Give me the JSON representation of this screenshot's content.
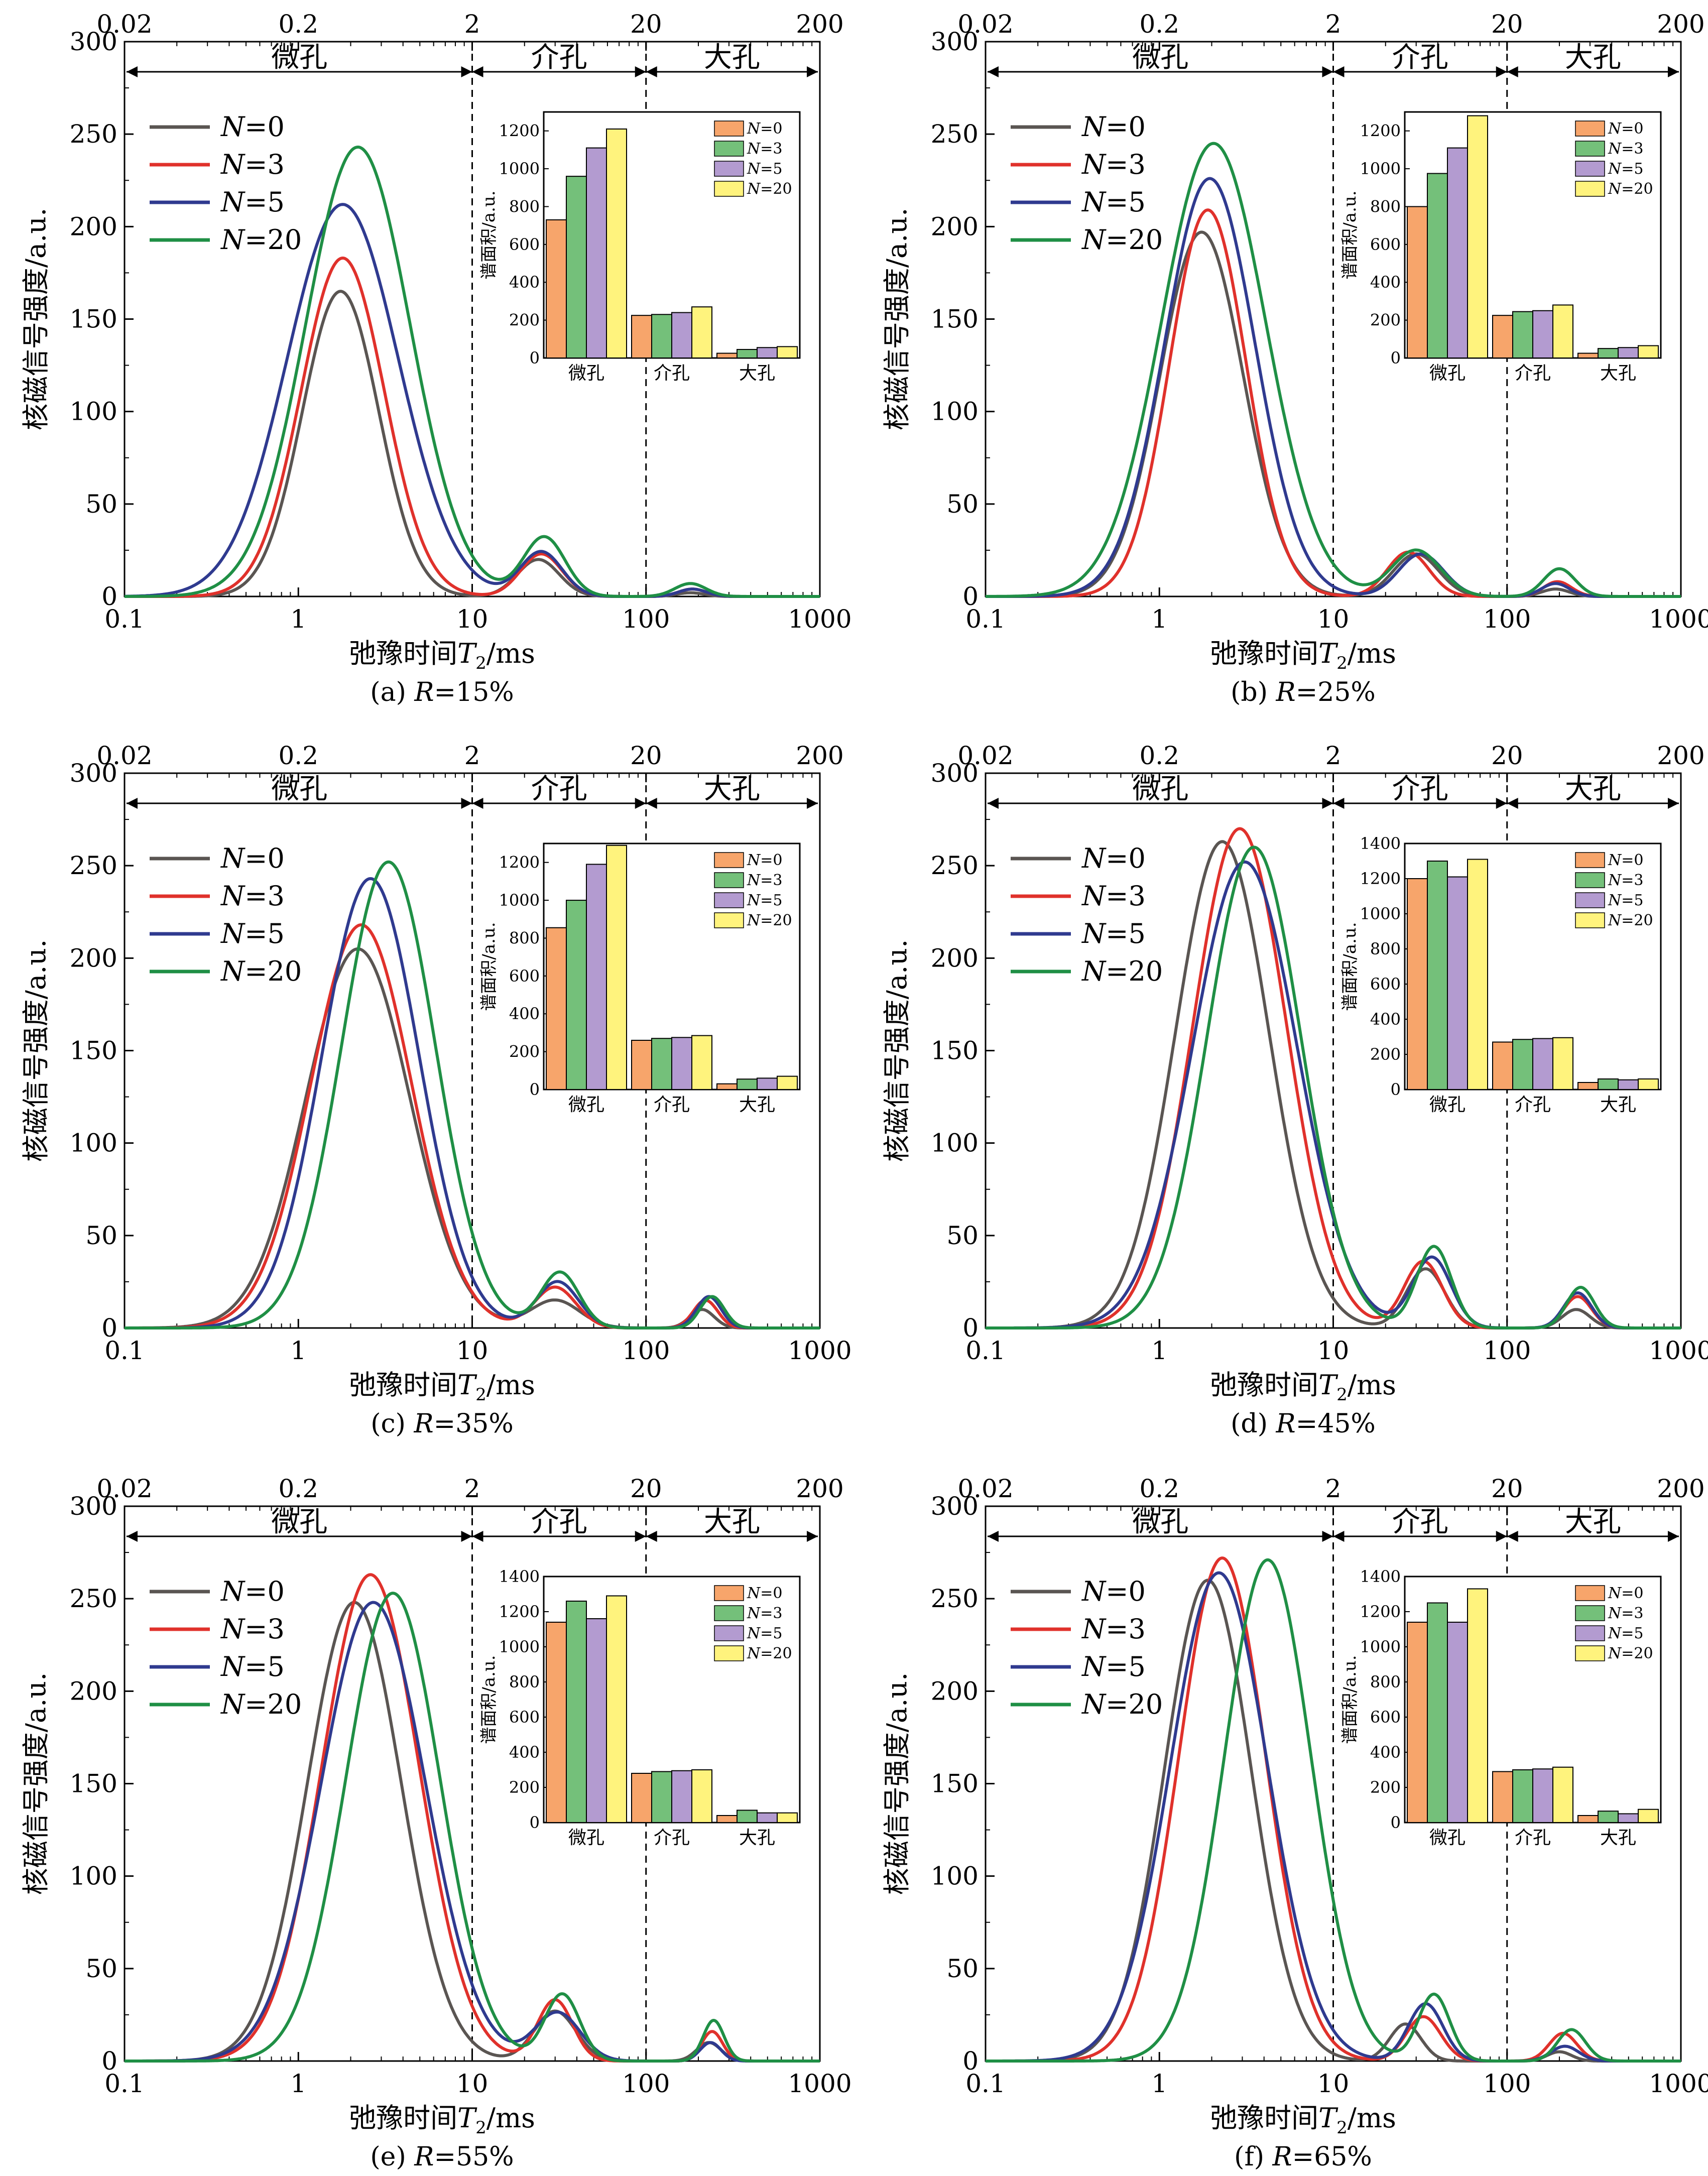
{
  "colors": {
    "N0": "#5a5552",
    "N3": "#e0312b",
    "N5": "#2f3a8f",
    "N20": "#1f8f45",
    "bar_N0": "#f7a56b",
    "bar_N3": "#74c07a",
    "bar_N5": "#b39bd0",
    "bar_N20": "#fff37d"
  },
  "chart_data": [
    {
      "caption_prefix": "(a) ",
      "caption_var": "R",
      "caption_value": "=15%",
      "type": "line",
      "x_scale": "log",
      "xlim": [
        0.1,
        1000
      ],
      "ylim": [
        0,
        300
      ],
      "x_ticks": [
        "0.1",
        "1",
        "10",
        "100",
        "1000"
      ],
      "top_ticks": [
        "0.02",
        "0.2",
        "2",
        "20",
        "200"
      ],
      "y_ticks": [
        "0",
        "50",
        "100",
        "150",
        "200",
        "250",
        "300"
      ],
      "xlabel": "弛豫时间",
      "xlabel_var": "T",
      "xlabel_sub": "2",
      "xlabel_unit": "/ms",
      "ylabel": "核磁信号强度/a.u.",
      "regions": [
        "微孔",
        "介孔",
        "大孔"
      ],
      "region_bounds": [
        10,
        100
      ],
      "legend_var": "N",
      "series": [
        {
          "name": "=0",
          "color_key": "N0",
          "peaks": [
            [
              1.75,
              165,
              0.22
            ],
            [
              24,
              20,
              0.12
            ],
            [
              180,
              2,
              0.08
            ]
          ]
        },
        {
          "name": "=3",
          "color_key": "N3",
          "peaks": [
            [
              1.8,
              183,
              0.24
            ],
            [
              25,
              23,
              0.12
            ],
            [
              185,
              4,
              0.08
            ]
          ]
        },
        {
          "name": "=5",
          "color_key": "N5",
          "peaks": [
            [
              1.8,
              212,
              0.32
            ],
            [
              25,
              24,
              0.12
            ],
            [
              185,
              4,
              0.08
            ]
          ]
        },
        {
          "name": "=20",
          "color_key": "N20",
          "peaks": [
            [
              2.2,
              243,
              0.3
            ],
            [
              26,
              32,
              0.12
            ],
            [
              180,
              7,
              0.09
            ]
          ]
        }
      ],
      "inset": {
        "type": "bar",
        "ylabel": "谱面积/a.u.",
        "categories": [
          "微孔",
          "介孔",
          "大孔"
        ],
        "ymax": 1300,
        "ticks": [
          "0",
          "200",
          "400",
          "600",
          "800",
          "1000",
          "1200"
        ],
        "values": [
          [
            730,
            960,
            1110,
            1210
          ],
          [
            225,
            230,
            240,
            270
          ],
          [
            25,
            45,
            55,
            60
          ]
        ]
      }
    },
    {
      "caption_prefix": "(b) ",
      "caption_var": "R",
      "caption_value": "=25%",
      "type": "line",
      "x_scale": "log",
      "xlim": [
        0.1,
        1000
      ],
      "ylim": [
        0,
        300
      ],
      "x_ticks": [
        "0.1",
        "1",
        "10",
        "100",
        "1000"
      ],
      "top_ticks": [
        "0.02",
        "0.2",
        "2",
        "20",
        "200"
      ],
      "y_ticks": [
        "0",
        "50",
        "100",
        "150",
        "200",
        "250",
        "300"
      ],
      "xlabel": "弛豫时间",
      "xlabel_var": "T",
      "xlabel_sub": "2",
      "xlabel_unit": "/ms",
      "ylabel": "核磁信号强度/a.u.",
      "regions": [
        "微孔",
        "介孔",
        "大孔"
      ],
      "region_bounds": [
        10,
        100
      ],
      "legend_var": "N",
      "series": [
        {
          "name": "=0",
          "color_key": "N0",
          "peaks": [
            [
              1.75,
              197,
              0.24
            ],
            [
              30,
              23,
              0.13
            ],
            [
              190,
              4,
              0.08
            ]
          ]
        },
        {
          "name": "=3",
          "color_key": "N3",
          "peaks": [
            [
              1.9,
              209,
              0.22
            ],
            [
              27,
              24,
              0.12
            ],
            [
              195,
              8,
              0.08
            ]
          ]
        },
        {
          "name": "=5",
          "color_key": "N5",
          "peaks": [
            [
              1.95,
              226,
              0.26
            ],
            [
              32,
              23,
              0.13
            ],
            [
              190,
              7,
              0.08
            ]
          ]
        },
        {
          "name": "=20",
          "color_key": "N20",
          "peaks": [
            [
              2.05,
              245,
              0.3
            ],
            [
              30,
              25,
              0.14
            ],
            [
              200,
              15,
              0.09
            ]
          ]
        }
      ],
      "inset": {
        "type": "bar",
        "ylabel": "谱面积/a.u.",
        "categories": [
          "微孔",
          "介孔",
          "大孔"
        ],
        "ymax": 1300,
        "ticks": [
          "0",
          "200",
          "400",
          "600",
          "800",
          "1000",
          "1200"
        ],
        "values": [
          [
            800,
            975,
            1110,
            1280
          ],
          [
            225,
            245,
            250,
            280
          ],
          [
            25,
            50,
            55,
            65
          ]
        ]
      }
    },
    {
      "caption_prefix": "(c) ",
      "caption_var": "R",
      "caption_value": "=35%",
      "type": "line",
      "x_scale": "log",
      "xlim": [
        0.1,
        1000
      ],
      "ylim": [
        0,
        300
      ],
      "x_ticks": [
        "0.1",
        "1",
        "10",
        "100",
        "1000"
      ],
      "top_ticks": [
        "0.02",
        "0.2",
        "2",
        "20",
        "200"
      ],
      "y_ticks": [
        "0",
        "50",
        "100",
        "150",
        "200",
        "250",
        "300"
      ],
      "xlabel": "弛豫时间",
      "xlabel_var": "T",
      "xlabel_sub": "2",
      "xlabel_unit": "/ms",
      "ylabel": "核磁信号强度/a.u.",
      "regions": [
        "微孔",
        "介孔",
        "大孔"
      ],
      "region_bounds": [
        10,
        100
      ],
      "legend_var": "N",
      "series": [
        {
          "name": "=0",
          "color_key": "N0",
          "peaks": [
            [
              2.2,
              205,
              0.3
            ],
            [
              30,
              15,
              0.14
            ],
            [
              210,
              10,
              0.07
            ]
          ]
        },
        {
          "name": "=3",
          "color_key": "N3",
          "peaks": [
            [
              2.3,
              218,
              0.29
            ],
            [
              30,
              22,
              0.12
            ],
            [
              220,
              15,
              0.07
            ]
          ]
        },
        {
          "name": "=5",
          "color_key": "N5",
          "peaks": [
            [
              2.6,
              243,
              0.28
            ],
            [
              31,
              25,
              0.12
            ],
            [
              230,
              17,
              0.07
            ]
          ]
        },
        {
          "name": "=20",
          "color_key": "N20",
          "peaks": [
            [
              3.3,
              252,
              0.27
            ],
            [
              32,
              30,
              0.11
            ],
            [
              240,
              17,
              0.07
            ]
          ]
        }
      ],
      "inset": {
        "type": "bar",
        "ylabel": "谱面积/a.u.",
        "categories": [
          "微孔",
          "介孔",
          "大孔"
        ],
        "ymax": 1300,
        "ticks": [
          "0",
          "200",
          "400",
          "600",
          "800",
          "1000",
          "1200"
        ],
        "values": [
          [
            855,
            1000,
            1190,
            1290
          ],
          [
            260,
            270,
            275,
            285
          ],
          [
            30,
            55,
            60,
            70
          ]
        ]
      }
    },
    {
      "caption_prefix": "(d) ",
      "caption_var": "R",
      "caption_value": "=45%",
      "type": "line",
      "x_scale": "log",
      "xlim": [
        0.1,
        1000
      ],
      "ylim": [
        0,
        300
      ],
      "x_ticks": [
        "0.1",
        "1",
        "10",
        "100",
        "1000"
      ],
      "top_ticks": [
        "0.02",
        "0.2",
        "2",
        "20",
        "200"
      ],
      "y_ticks": [
        "0",
        "50",
        "100",
        "150",
        "200",
        "250",
        "300"
      ],
      "xlabel": "弛豫时间",
      "xlabel_var": "T",
      "xlabel_sub": "2",
      "xlabel_unit": "/ms",
      "ylabel": "核磁信号强度/a.u.",
      "regions": [
        "微孔",
        "介孔",
        "大孔"
      ],
      "region_bounds": [
        10,
        100
      ],
      "legend_var": "N",
      "series": [
        {
          "name": "=0",
          "color_key": "N0",
          "peaks": [
            [
              2.3,
              263,
              0.27
            ],
            [
              34,
              32,
              0.11
            ],
            [
              250,
              10,
              0.08
            ]
          ]
        },
        {
          "name": "=3",
          "color_key": "N3",
          "peaks": [
            [
              2.9,
              270,
              0.27
            ],
            [
              33,
              36,
              0.11
            ],
            [
              255,
              17,
              0.08
            ]
          ]
        },
        {
          "name": "=5",
          "color_key": "N5",
          "peaks": [
            [
              3.1,
              252,
              0.3
            ],
            [
              37,
              38,
              0.11
            ],
            [
              255,
              19,
              0.08
            ]
          ]
        },
        {
          "name": "=20",
          "color_key": "N20",
          "peaks": [
            [
              3.5,
              260,
              0.27
            ],
            [
              38,
              44,
              0.1
            ],
            [
              265,
              22,
              0.08
            ]
          ]
        }
      ],
      "inset": {
        "type": "bar",
        "ylabel": "谱面积/a.u.",
        "categories": [
          "微孔",
          "介孔",
          "大孔"
        ],
        "ymax": 1400,
        "ticks": [
          "0",
          "200",
          "400",
          "600",
          "800",
          "1000",
          "1200",
          "1400"
        ],
        "values": [
          [
            1200,
            1300,
            1210,
            1310
          ],
          [
            270,
            285,
            290,
            295
          ],
          [
            40,
            60,
            55,
            60
          ]
        ]
      }
    },
    {
      "caption_prefix": "(e) ",
      "caption_var": "R",
      "caption_value": "=55%",
      "type": "line",
      "x_scale": "log",
      "xlim": [
        0.1,
        1000
      ],
      "ylim": [
        0,
        300
      ],
      "x_ticks": [
        "0.1",
        "1",
        "10",
        "100",
        "1000"
      ],
      "top_ticks": [
        "0.02",
        "0.2",
        "2",
        "20",
        "200"
      ],
      "y_ticks": [
        "0",
        "50",
        "100",
        "150",
        "200",
        "250",
        "300"
      ],
      "xlabel": "弛豫时间",
      "xlabel_var": "T",
      "xlabel_sub": "2",
      "xlabel_unit": "/ms",
      "ylabel": "核磁信号强度/a.u.",
      "regions": [
        "微孔",
        "介孔",
        "大孔"
      ],
      "region_bounds": [
        10,
        100
      ],
      "legend_var": "N",
      "series": [
        {
          "name": "=0",
          "color_key": "N0",
          "peaks": [
            [
              2.1,
              248,
              0.27
            ],
            [
              30,
              27,
              0.12
            ],
            [
              230,
              10,
              0.07
            ]
          ]
        },
        {
          "name": "=3",
          "color_key": "N3",
          "peaks": [
            [
              2.6,
              263,
              0.28
            ],
            [
              30,
              33,
              0.1
            ],
            [
              240,
              16,
              0.06
            ]
          ]
        },
        {
          "name": "=5",
          "color_key": "N5",
          "peaks": [
            [
              2.7,
              248,
              0.3
            ],
            [
              31,
              26,
              0.13
            ],
            [
              235,
              10,
              0.06
            ]
          ]
        },
        {
          "name": "=20",
          "color_key": "N20",
          "peaks": [
            [
              3.5,
              253,
              0.27
            ],
            [
              33,
              36,
              0.1
            ],
            [
              245,
              22,
              0.06
            ]
          ]
        }
      ],
      "inset": {
        "type": "bar",
        "ylabel": "谱面积/a.u.",
        "categories": [
          "微孔",
          "介孔",
          "大孔"
        ],
        "ymax": 1400,
        "ticks": [
          "0",
          "200",
          "400",
          "600",
          "800",
          "1000",
          "1200",
          "1400"
        ],
        "values": [
          [
            1140,
            1260,
            1160,
            1290
          ],
          [
            280,
            290,
            295,
            300
          ],
          [
            40,
            70,
            55,
            55
          ]
        ]
      }
    },
    {
      "caption_prefix": "(f) ",
      "caption_var": "R",
      "caption_value": "=65%",
      "type": "line",
      "x_scale": "log",
      "xlim": [
        0.1,
        1000
      ],
      "ylim": [
        0,
        300
      ],
      "x_ticks": [
        "0.1",
        "1",
        "10",
        "100",
        "1000"
      ],
      "top_ticks": [
        "0.02",
        "0.2",
        "2",
        "20",
        "200"
      ],
      "y_ticks": [
        "0",
        "50",
        "100",
        "150",
        "200",
        "250",
        "300"
      ],
      "xlabel": "弛豫时间",
      "xlabel_var": "T",
      "xlabel_sub": "2",
      "xlabel_unit": "/ms",
      "ylabel": "核磁信号强度/a.u.",
      "regions": [
        "微孔",
        "介孔",
        "大孔"
      ],
      "region_bounds": [
        10,
        100
      ],
      "legend_var": "N",
      "series": [
        {
          "name": "=0",
          "color_key": "N0",
          "peaks": [
            [
              1.9,
              260,
              0.25
            ],
            [
              26,
              20,
              0.09
            ],
            [
              200,
              5,
              0.07
            ]
          ]
        },
        {
          "name": "=3",
          "color_key": "N3",
          "peaks": [
            [
              2.3,
              272,
              0.25
            ],
            [
              33,
              24,
              0.1
            ],
            [
              210,
              15,
              0.08
            ]
          ]
        },
        {
          "name": "=5",
          "color_key": "N5",
          "peaks": [
            [
              2.2,
              264,
              0.28
            ],
            [
              34,
              31,
              0.1
            ],
            [
              215,
              8,
              0.08
            ]
          ]
        },
        {
          "name": "=20",
          "color_key": "N20",
          "peaks": [
            [
              4.2,
              271,
              0.25
            ],
            [
              38,
              36,
              0.09
            ],
            [
              235,
              17,
              0.08
            ]
          ]
        }
      ],
      "inset": {
        "type": "bar",
        "ylabel": "谱面积/a.u.",
        "categories": [
          "微孔",
          "介孔",
          "大孔"
        ],
        "ymax": 1400,
        "ticks": [
          "0",
          "200",
          "400",
          "600",
          "800",
          "1000",
          "1200",
          "1400"
        ],
        "values": [
          [
            1140,
            1250,
            1140,
            1330
          ],
          [
            290,
            300,
            305,
            315
          ],
          [
            40,
            65,
            50,
            75
          ]
        ]
      }
    }
  ]
}
